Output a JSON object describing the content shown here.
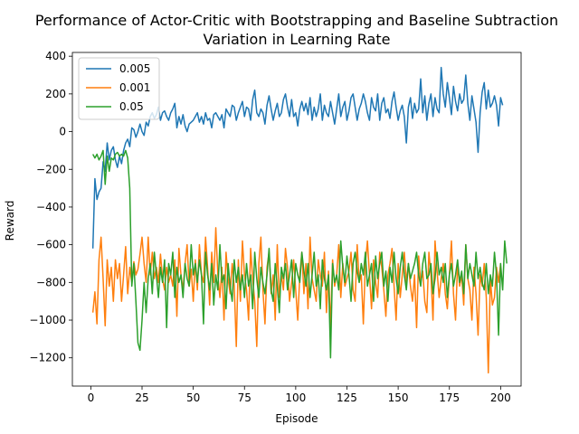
{
  "chart_data": {
    "type": "line",
    "title_line1": "Performance of Actor-Critic with Bootstrapping and Baseline Subtraction",
    "title_line2": "Variation in Learning Rate",
    "xlabel": "Episode",
    "ylabel": "Reward",
    "xlim": [
      -9,
      210
    ],
    "ylim": [
      -1350,
      420
    ],
    "xticks": [
      0,
      25,
      50,
      75,
      100,
      125,
      150,
      175,
      200
    ],
    "yticks": [
      -1200,
      -1000,
      -800,
      -600,
      -400,
      -200,
      0,
      200,
      400
    ],
    "ytick_labels": [
      "−1200",
      "−1000",
      "−800",
      "−600",
      "−400",
      "−200",
      "0",
      "200",
      "400"
    ],
    "grid": false,
    "legend_position": "top-left",
    "series": [
      {
        "name": "0.005",
        "color": "#1f77b4",
        "start_x": 1,
        "values": [
          -620,
          -250,
          -360,
          -320,
          -300,
          -160,
          -210,
          -60,
          -150,
          -100,
          -80,
          -150,
          -190,
          -130,
          -170,
          -100,
          -60,
          -40,
          -80,
          20,
          10,
          -30,
          0,
          40,
          0,
          -20,
          50,
          30,
          80,
          100,
          70,
          90,
          130,
          60,
          100,
          110,
          80,
          60,
          100,
          120,
          150,
          20,
          80,
          40,
          90,
          30,
          0,
          40,
          50,
          60,
          80,
          100,
          50,
          80,
          40,
          100,
          60,
          70,
          20,
          90,
          100,
          80,
          60,
          90,
          20,
          120,
          100,
          80,
          140,
          130,
          60,
          100,
          130,
          160,
          80,
          130,
          120,
          60,
          170,
          220,
          100,
          80,
          120,
          100,
          40,
          140,
          190,
          120,
          60,
          110,
          150,
          80,
          100,
          170,
          200,
          130,
          80,
          170,
          80,
          100,
          30,
          120,
          160,
          110,
          150,
          90,
          180,
          60,
          130,
          80,
          120,
          200,
          60,
          140,
          100,
          80,
          160,
          100,
          40,
          120,
          200,
          80,
          130,
          160,
          60,
          110,
          180,
          200,
          130,
          60,
          120,
          150,
          200,
          160,
          100,
          60,
          180,
          130,
          110,
          200,
          60,
          150,
          180,
          100,
          120,
          70,
          160,
          210,
          130,
          60,
          110,
          140,
          80,
          -60,
          130,
          180,
          70,
          150,
          100,
          120,
          280,
          100,
          190,
          60,
          150,
          200,
          80,
          180,
          120,
          100,
          340,
          200,
          130,
          260,
          180,
          90,
          240,
          160,
          110,
          200,
          150,
          170,
          300,
          150,
          60,
          190,
          120,
          50,
          -110,
          100,
          210,
          260,
          120,
          220,
          130,
          150,
          190,
          140,
          30,
          180,
          140
        ]
      },
      {
        "name": "0.001",
        "color": "#ff7f0e",
        "start_x": 1,
        "values": [
          -960,
          -850,
          -1020,
          -680,
          -560,
          -780,
          -1030,
          -680,
          -820,
          -720,
          -900,
          -680,
          -780,
          -700,
          -900,
          -760,
          -610,
          -860,
          -720,
          -800,
          -690,
          -760,
          -730,
          -650,
          -560,
          -700,
          -800,
          -560,
          -760,
          -640,
          -780,
          -720,
          -800,
          -650,
          -780,
          -840,
          -720,
          -800,
          -760,
          -820,
          -680,
          -980,
          -620,
          -760,
          -840,
          -700,
          -600,
          -820,
          -730,
          -900,
          -680,
          -840,
          -600,
          -760,
          -800,
          -560,
          -720,
          -920,
          -640,
          -800,
          -510,
          -760,
          -880,
          -720,
          -1000,
          -640,
          -780,
          -860,
          -700,
          -820,
          -1140,
          -680,
          -900,
          -580,
          -760,
          -840,
          -1000,
          -620,
          -780,
          -900,
          -1140,
          -700,
          -560,
          -840,
          -1020,
          -720,
          -640,
          -860,
          -760,
          -1000,
          -600,
          -880,
          -760,
          -840,
          -620,
          -720,
          -900,
          -800,
          -680,
          -840,
          -1000,
          -760,
          -640,
          -860,
          -700,
          -940,
          -560,
          -780,
          -840,
          -900,
          -680,
          -760,
          -820,
          -640,
          -960,
          -740,
          -1040,
          -680,
          -820,
          -760,
          -600,
          -880,
          -700,
          -820,
          -780,
          -740,
          -640,
          -840,
          -900,
          -600,
          -800,
          -760,
          -1020,
          -700,
          -580,
          -760,
          -940,
          -680,
          -800,
          -880,
          -640,
          -720,
          -840,
          -980,
          -760,
          -700,
          -620,
          -820,
          -1000,
          -700,
          -880,
          -760,
          -640,
          -800,
          -700,
          -820,
          -900,
          -760,
          -1040,
          -660,
          -800,
          -740,
          -900,
          -960,
          -640,
          -760,
          -1000,
          -580,
          -740,
          -880,
          -780,
          -700,
          -860,
          -940,
          -760,
          -580,
          -860,
          -1000,
          -700,
          -820,
          -760,
          -920,
          -600,
          -780,
          -840,
          -1000,
          -720,
          -860,
          -1080,
          -760,
          -820,
          -700,
          -880,
          -1280,
          -780,
          -920,
          -880,
          -720,
          -800,
          -700
        ]
      },
      {
        "name": "0.05",
        "color": "#2ca02c",
        "start_x": 1,
        "values": [
          -120,
          -140,
          -120,
          -150,
          -130,
          -100,
          -280,
          -130,
          -210,
          -140,
          -150,
          -120,
          -110,
          -130,
          -120,
          -130,
          -100,
          -140,
          -300,
          -820,
          -700,
          -900,
          -1120,
          -1160,
          -1000,
          -800,
          -960,
          -780,
          -700,
          -860,
          -640,
          -760,
          -880,
          -720,
          -800,
          -680,
          -1040,
          -700,
          -760,
          -640,
          -880,
          -720,
          -800,
          -760,
          -880,
          -700,
          -780,
          -820,
          -600,
          -760,
          -700,
          -800,
          -680,
          -760,
          -1020,
          -640,
          -760,
          -840,
          -700,
          -920,
          -760,
          -840,
          -600,
          -800,
          -760,
          -940,
          -700,
          -820,
          -900,
          -680,
          -800,
          -720,
          -840,
          -760,
          -880,
          -700,
          -820,
          -760,
          -940,
          -640,
          -780,
          -880,
          -720,
          -800,
          -860,
          -760,
          -620,
          -840,
          -900,
          -700,
          -820,
          -960,
          -720,
          -780,
          -700,
          -840,
          -760,
          -680,
          -880,
          -700,
          -760,
          -800,
          -640,
          -740,
          -820,
          -700,
          -880,
          -760,
          -640,
          -820,
          -760,
          -940,
          -680,
          -780,
          -840,
          -760,
          -1200,
          -700,
          -800,
          -760,
          -840,
          -580,
          -720,
          -800,
          -660,
          -760,
          -900,
          -700,
          -640,
          -740,
          -800,
          -700,
          -760,
          -640,
          -820,
          -760,
          -700,
          -900,
          -660,
          -780,
          -700,
          -640,
          -820,
          -740,
          -900,
          -720,
          -800,
          -640,
          -780,
          -860,
          -720,
          -640,
          -760,
          -840,
          -700,
          -780,
          -740,
          -700,
          -640,
          -760,
          -820,
          -700,
          -640,
          -780,
          -760,
          -700,
          -860,
          -780,
          -640,
          -760,
          -720,
          -800,
          -700,
          -880,
          -760,
          -700,
          -820,
          -760,
          -680,
          -800,
          -740,
          -860,
          -600,
          -780,
          -700,
          -760,
          -820,
          -640,
          -780,
          -720,
          -800,
          -840,
          -700,
          -860,
          -760,
          -820,
          -640,
          -760,
          -1080,
          -700,
          -840,
          -580,
          -700
        ]
      }
    ]
  }
}
